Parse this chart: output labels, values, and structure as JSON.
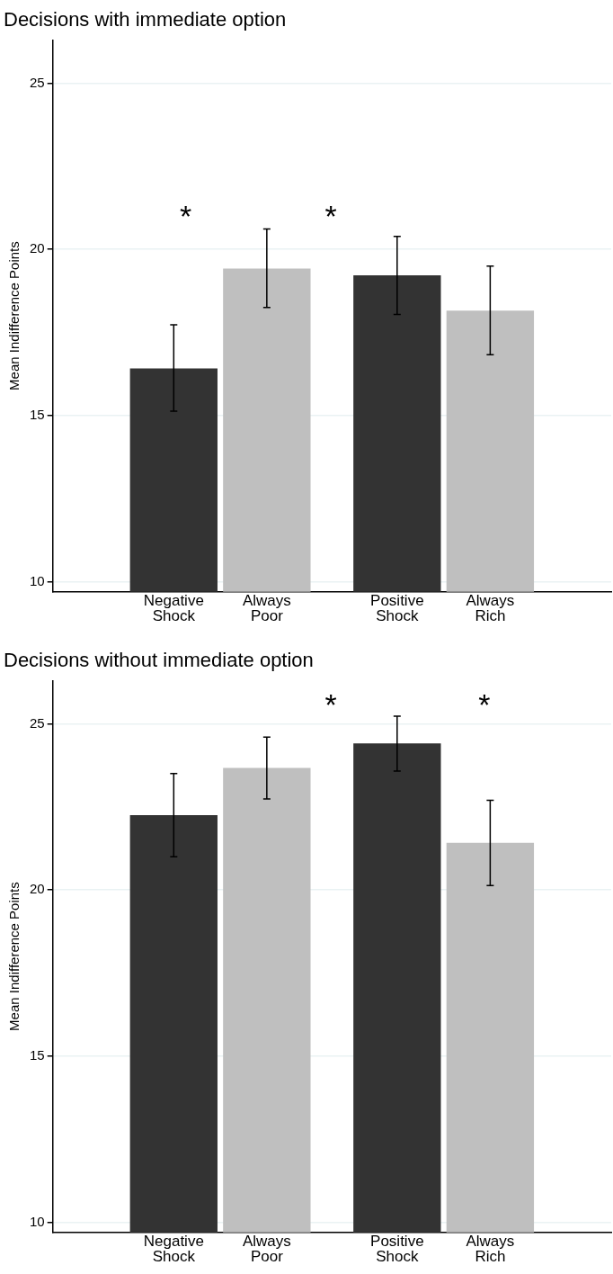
{
  "chart_data": [
    {
      "type": "bar",
      "title": "Decisions with immediate option",
      "ylabel": "Mean Indifference Points",
      "categories": [
        "Negative Shock",
        "Always Poor",
        "Positive Shock",
        "Always Rich"
      ],
      "values": [
        16.42,
        19.42,
        19.22,
        18.16
      ],
      "colors": [
        "#333333",
        "#bfbfbf",
        "#333333",
        "#bfbfbf"
      ],
      "errors": [
        [
          15.13,
          17.73
        ],
        [
          18.25,
          20.61
        ],
        [
          18.04,
          20.39
        ],
        [
          16.83,
          19.5
        ]
      ],
      "ylim": [
        9.7,
        26.3
      ],
      "yticks": [
        10,
        15,
        20,
        25
      ],
      "grid": "y",
      "legend": false,
      "annotations": [
        "*",
        "*"
      ]
    },
    {
      "type": "bar",
      "title": "Decisions without immediate option",
      "ylabel": "Mean Indifference Points",
      "categories": [
        "Negative Shock",
        "Always Poor",
        "Positive Shock",
        "Always Rich"
      ],
      "values": [
        22.25,
        23.67,
        24.41,
        21.42
      ],
      "colors": [
        "#333333",
        "#bfbfbf",
        "#333333",
        "#bfbfbf"
      ],
      "errors": [
        [
          21.0,
          23.5
        ],
        [
          22.74,
          24.6
        ],
        [
          23.58,
          25.23
        ],
        [
          20.13,
          22.7
        ]
      ],
      "ylim": [
        9.7,
        26.3
      ],
      "yticks": [
        10,
        15,
        20,
        25
      ],
      "grid": "y",
      "legend": false,
      "annotations": [
        "*",
        "*"
      ]
    }
  ]
}
